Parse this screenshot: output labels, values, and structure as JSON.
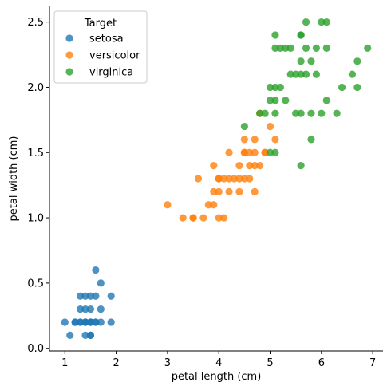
{
  "chart_data": {
    "type": "scatter",
    "title": "",
    "xlabel": "petal length (cm)",
    "ylabel": "petal width (cm)",
    "xlim": [
      0.7,
      7.2
    ],
    "ylim": [
      -0.02,
      2.62
    ],
    "xticks": [
      1,
      2,
      3,
      4,
      5,
      6,
      7
    ],
    "xtick_labels": [
      "1",
      "2",
      "3",
      "4",
      "5",
      "6",
      "7"
    ],
    "yticks": [
      0.0,
      0.5,
      1.0,
      1.5,
      2.0,
      2.5
    ],
    "ytick_labels": [
      "0.0",
      "0.5",
      "1.0",
      "1.5",
      "2.0",
      "2.5"
    ],
    "grid": false,
    "legend": {
      "title": "Target",
      "placement": "top-left"
    },
    "series": [
      {
        "name": "setosa",
        "color": "#1f77b4",
        "points": [
          [
            1.0,
            0.2
          ],
          [
            1.1,
            0.1
          ],
          [
            1.2,
            0.2
          ],
          [
            1.3,
            0.2
          ],
          [
            1.3,
            0.3
          ],
          [
            1.3,
            0.4
          ],
          [
            1.4,
            0.1
          ],
          [
            1.4,
            0.2
          ],
          [
            1.4,
            0.3
          ],
          [
            1.5,
            0.1
          ],
          [
            1.5,
            0.2
          ],
          [
            1.5,
            0.4
          ],
          [
            1.6,
            0.2
          ],
          [
            1.6,
            0.4
          ],
          [
            1.6,
            0.6
          ],
          [
            1.7,
            0.3
          ],
          [
            1.7,
            0.5
          ],
          [
            1.9,
            0.2
          ],
          [
            1.9,
            0.4
          ],
          [
            1.7,
            0.2
          ],
          [
            1.5,
            0.3
          ],
          [
            1.4,
            0.4
          ],
          [
            1.2,
            0.2
          ],
          [
            1.5,
            0.2
          ],
          [
            1.6,
            0.2
          ],
          [
            1.4,
            0.2
          ],
          [
            1.5,
            0.1
          ],
          [
            1.3,
            0.2
          ],
          [
            1.4,
            0.2
          ],
          [
            1.5,
            0.2
          ]
        ]
      },
      {
        "name": "versicolor",
        "color": "#ff7f0e",
        "points": [
          [
            3.0,
            1.1
          ],
          [
            3.3,
            1.0
          ],
          [
            3.5,
            1.0
          ],
          [
            3.6,
            1.3
          ],
          [
            3.7,
            1.0
          ],
          [
            3.8,
            1.1
          ],
          [
            3.9,
            1.1
          ],
          [
            3.9,
            1.2
          ],
          [
            3.9,
            1.4
          ],
          [
            4.0,
            1.0
          ],
          [
            4.0,
            1.2
          ],
          [
            4.0,
            1.3
          ],
          [
            4.1,
            1.0
          ],
          [
            4.1,
            1.3
          ],
          [
            4.2,
            1.2
          ],
          [
            4.2,
            1.3
          ],
          [
            4.2,
            1.5
          ],
          [
            4.3,
            1.3
          ],
          [
            4.4,
            1.2
          ],
          [
            4.4,
            1.3
          ],
          [
            4.4,
            1.4
          ],
          [
            4.5,
            1.3
          ],
          [
            4.5,
            1.5
          ],
          [
            4.5,
            1.6
          ],
          [
            4.6,
            1.3
          ],
          [
            4.6,
            1.4
          ],
          [
            4.6,
            1.5
          ],
          [
            4.7,
            1.2
          ],
          [
            4.7,
            1.4
          ],
          [
            4.7,
            1.5
          ],
          [
            4.7,
            1.6
          ],
          [
            4.8,
            1.4
          ],
          [
            4.8,
            1.8
          ],
          [
            4.9,
            1.5
          ],
          [
            5.0,
            1.7
          ],
          [
            5.1,
            1.6
          ],
          [
            3.5,
            1.0
          ],
          [
            4.9,
            1.5
          ],
          [
            4.5,
            1.5
          ],
          [
            4.0,
            1.3
          ]
        ]
      },
      {
        "name": "virginica",
        "color": "#2ca02c",
        "points": [
          [
            4.5,
            1.7
          ],
          [
            4.8,
            1.8
          ],
          [
            4.9,
            1.8
          ],
          [
            5.0,
            1.5
          ],
          [
            5.0,
            1.9
          ],
          [
            5.0,
            2.0
          ],
          [
            5.1,
            1.5
          ],
          [
            5.1,
            1.8
          ],
          [
            5.1,
            1.9
          ],
          [
            5.1,
            2.0
          ],
          [
            5.1,
            2.3
          ],
          [
            5.1,
            2.4
          ],
          [
            5.2,
            2.0
          ],
          [
            5.2,
            2.3
          ],
          [
            5.3,
            1.9
          ],
          [
            5.3,
            2.3
          ],
          [
            5.4,
            2.1
          ],
          [
            5.4,
            2.3
          ],
          [
            5.5,
            1.8
          ],
          [
            5.5,
            2.1
          ],
          [
            5.6,
            1.4
          ],
          [
            5.6,
            1.8
          ],
          [
            5.6,
            2.1
          ],
          [
            5.6,
            2.2
          ],
          [
            5.6,
            2.4
          ],
          [
            5.7,
            2.1
          ],
          [
            5.7,
            2.3
          ],
          [
            5.7,
            2.5
          ],
          [
            5.8,
            1.6
          ],
          [
            5.8,
            1.8
          ],
          [
            5.8,
            2.2
          ],
          [
            5.9,
            2.1
          ],
          [
            5.9,
            2.3
          ],
          [
            6.0,
            1.8
          ],
          [
            6.0,
            2.5
          ],
          [
            6.1,
            1.9
          ],
          [
            6.1,
            2.3
          ],
          [
            6.1,
            2.5
          ],
          [
            6.3,
            1.8
          ],
          [
            6.4,
            2.0
          ],
          [
            6.6,
            2.1
          ],
          [
            6.7,
            2.0
          ],
          [
            6.7,
            2.2
          ],
          [
            6.9,
            2.3
          ],
          [
            5.6,
            2.4
          ]
        ]
      }
    ]
  }
}
